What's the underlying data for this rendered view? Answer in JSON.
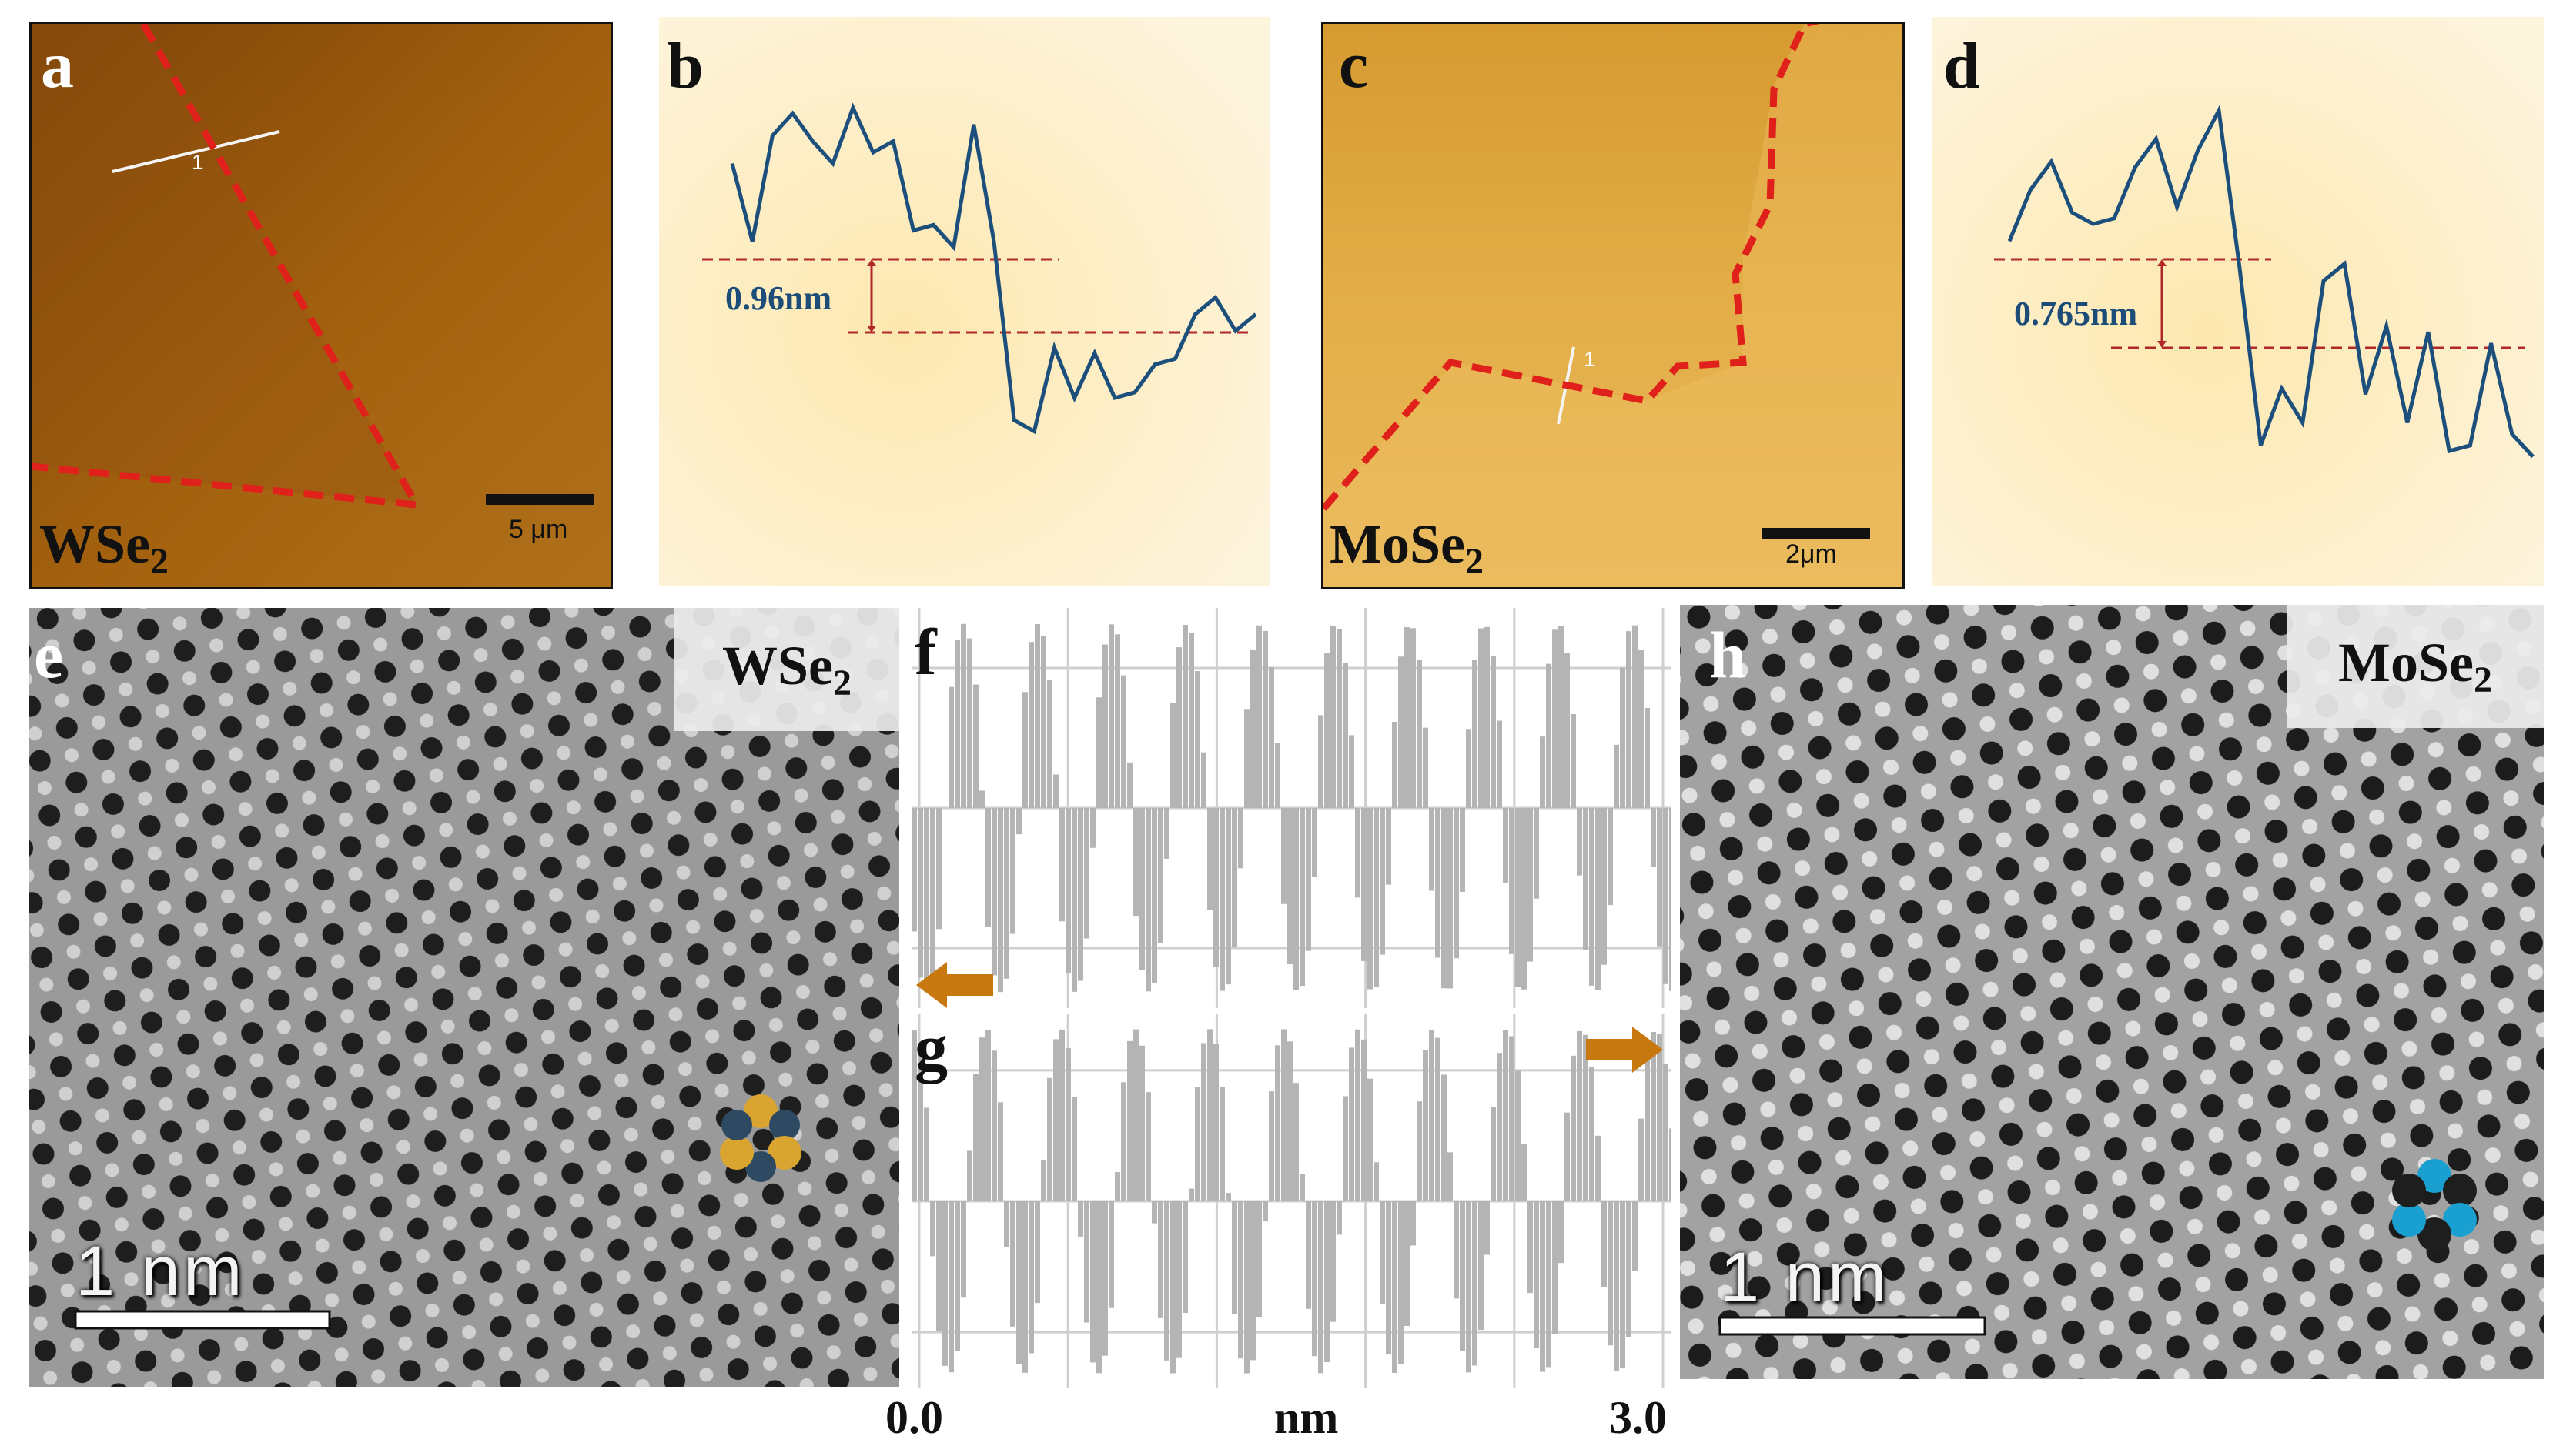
{
  "panels": {
    "a": {
      "label": "a",
      "material": "WSe",
      "material_sub": "2",
      "scale_bar": "5 μm",
      "line_marker": "1"
    },
    "b": {
      "label": "b",
      "step_height": "0.96nm"
    },
    "c": {
      "label": "c",
      "material": "MoSe",
      "material_sub": "2",
      "scale_bar": "2μm",
      "line_marker": "1"
    },
    "d": {
      "label": "d",
      "step_height": "0.765nm"
    },
    "e": {
      "label": "e",
      "material": "WSe",
      "material_sub": "2",
      "scale_bar": "1 nm"
    },
    "f": {
      "label": "f"
    },
    "g": {
      "label": "g"
    },
    "h": {
      "label": "h",
      "material": "MoSe",
      "material_sub": "2",
      "scale_bar": "1 nm"
    }
  },
  "axis": {
    "x_min": "0.0",
    "x_unit": "nm",
    "x_max": "3.0"
  },
  "colors": {
    "afm_dark": "#9a5a0c",
    "afm_light": "#e8b45a",
    "profile_bg": "#fdf3d8",
    "profile_line": "#1d4f7c",
    "dashed_red": "#e0201a",
    "arrow_orange": "#c7780e",
    "tem_gray": "#8a8a8a",
    "bar_gray": "#b4b4b4"
  },
  "chart_data": [
    {
      "type": "line",
      "panel": "b",
      "title": "",
      "xlabel": "",
      "ylabel": "",
      "series": [
        {
          "values": [
            6.2,
            4.8,
            6.7,
            7.1,
            6.6,
            6.2,
            7.2,
            6.4,
            6.6,
            5.0,
            5.1,
            4.7,
            6.9,
            4.8,
            1.6,
            1.4,
            2.9,
            2.0,
            2.8,
            2.0,
            2.1,
            2.6,
            2.7,
            3.5,
            3.8,
            3.2,
            3.5
          ]
        }
      ],
      "annotations": [
        "0.96nm"
      ]
    },
    {
      "type": "line",
      "panel": "d",
      "title": "",
      "xlabel": "",
      "ylabel": "",
      "series": [
        {
          "values": [
            5.0,
            5.9,
            6.4,
            5.5,
            5.3,
            5.4,
            6.3,
            6.8,
            5.6,
            6.6,
            7.3,
            4.5,
            1.4,
            2.4,
            1.8,
            4.3,
            4.6,
            2.3,
            3.5,
            1.8,
            3.4,
            1.3,
            1.4,
            3.2,
            1.6,
            1.2
          ]
        }
      ],
      "annotations": [
        "0.765nm"
      ]
    },
    {
      "type": "bar",
      "panel": "f",
      "title": "",
      "xlabel": "nm",
      "ylabel": "",
      "xlim": [
        0.0,
        3.0
      ],
      "peaks_count": 10,
      "arrow_direction": "left"
    },
    {
      "type": "bar",
      "panel": "g",
      "title": "",
      "xlabel": "nm",
      "ylabel": "",
      "xlim": [
        0.0,
        3.0
      ],
      "peaks_count": 10,
      "arrow_direction": "right"
    }
  ]
}
